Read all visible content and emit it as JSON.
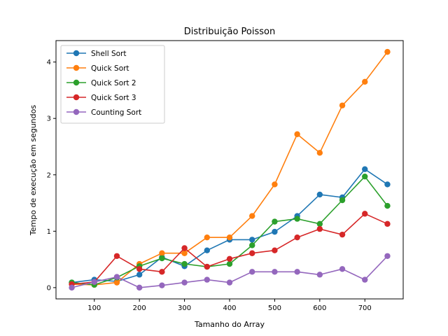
{
  "chart_data": {
    "type": "line",
    "title": "Distribuição Poisson",
    "xlabel": "Tamanho do Array",
    "ylabel": "Tempo de execução em segundos",
    "xlim": [
      15,
      785
    ],
    "ylim": [
      -0.2,
      4.38
    ],
    "xticks": [
      100,
      200,
      300,
      400,
      500,
      600,
      700
    ],
    "yticks": [
      0,
      1,
      2,
      3,
      4
    ],
    "grid": false,
    "legend_position": "top-left",
    "x": [
      50,
      100,
      150,
      200,
      250,
      300,
      350,
      400,
      450,
      500,
      550,
      600,
      650,
      700,
      750
    ],
    "series": [
      {
        "name": "Shell Sort",
        "color": "#1f77b4",
        "values": [
          0.09,
          0.14,
          0.11,
          0.23,
          0.54,
          0.38,
          0.66,
          0.85,
          0.85,
          0.99,
          1.27,
          1.65,
          1.6,
          2.1,
          1.83
        ]
      },
      {
        "name": "Quick Sort",
        "color": "#ff7f0e",
        "values": [
          0.06,
          0.05,
          0.09,
          0.42,
          0.61,
          0.61,
          0.89,
          0.89,
          1.27,
          1.83,
          2.72,
          2.39,
          3.23,
          3.65,
          4.18
        ]
      },
      {
        "name": "Quick Sort 2",
        "color": "#2ca02c",
        "values": [
          0.09,
          0.05,
          0.18,
          0.38,
          0.52,
          0.42,
          0.37,
          0.42,
          0.75,
          1.17,
          1.22,
          1.13,
          1.55,
          1.97,
          1.45
        ]
      },
      {
        "name": "Quick Sort 3",
        "color": "#d62728",
        "values": [
          0.06,
          0.1,
          0.56,
          0.33,
          0.28,
          0.7,
          0.37,
          0.51,
          0.61,
          0.66,
          0.89,
          1.04,
          0.94,
          1.31,
          1.13
        ]
      },
      {
        "name": "Counting Sort",
        "color": "#9467bd",
        "values": [
          0.0,
          0.1,
          0.19,
          0.0,
          0.04,
          0.09,
          0.14,
          0.09,
          0.28,
          0.28,
          0.28,
          0.23,
          0.33,
          0.14,
          0.56
        ]
      }
    ]
  }
}
